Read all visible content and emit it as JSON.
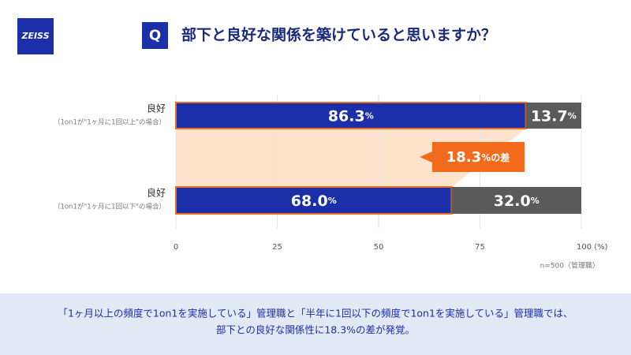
{
  "header": {
    "logo": "ZEISS",
    "badge": "Q",
    "title": "部下と良好な関係を築けていると思いますか？"
  },
  "chart_data": {
    "type": "stacked-bar-horizontal",
    "categories": [
      "良好",
      "良好"
    ],
    "category_notes": [
      "（1on1が\"1ヶ月に1回以上\"の場合）",
      "（1on1が\"1ヶ月に1回以下\"の場合）"
    ],
    "series": [
      {
        "color": "#1b2fa8",
        "values": [
          86.3,
          68.0
        ],
        "value_labels": [
          "86.3%",
          "68.0%"
        ]
      },
      {
        "color": "#5a5a5a",
        "values": [
          13.7,
          32.0
        ],
        "value_labels": [
          "13.7%",
          "32.0%"
        ]
      }
    ],
    "xlim": [
      0,
      100
    ],
    "xticks": [
      0,
      25,
      50,
      75,
      {
        "value": 100,
        "label": "100 (%)"
      }
    ],
    "highlight_color": "#f26b1d",
    "annotation": "18.3%の差",
    "note": "n=500（管理職）"
  },
  "footer": {
    "lines": [
      "「1ヶ月以上の頻度で1on1を実施している」管理職と「半年に1回以下の頻度で1on1を実施している」管理職では、",
      "部下との良好な関係性に18.3%の差が発覚。"
    ]
  }
}
